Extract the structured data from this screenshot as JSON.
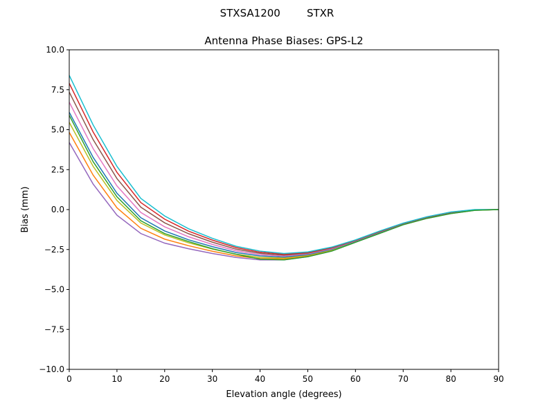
{
  "chart_data": {
    "type": "line",
    "suptitle": "STXSA1200        STXR",
    "title": "Antenna Phase Biases: GPS-L2",
    "xlabel": "Elevation angle (degrees)",
    "ylabel": "Bias (mm)",
    "x": [
      0,
      5,
      10,
      15,
      20,
      25,
      30,
      35,
      40,
      45,
      50,
      55,
      60,
      65,
      70,
      75,
      80,
      85,
      90
    ],
    "xlim": [
      0,
      90
    ],
    "xticks": [
      0,
      10,
      20,
      30,
      40,
      50,
      60,
      70,
      80,
      90
    ],
    "ylim": [
      -10,
      10
    ],
    "yticks": [
      {
        "value": -10,
        "label": "−10.0"
      },
      {
        "value": -7.5,
        "label": "−7.5"
      },
      {
        "value": -5,
        "label": "−5.0"
      },
      {
        "value": -2.5,
        "label": "−2.5"
      },
      {
        "value": 0,
        "label": "0.0"
      },
      2.5,
      {
        "value": 5,
        "label": "5.0"
      },
      7.5,
      {
        "value": 10,
        "label": "10.0"
      }
    ],
    "series": [
      {
        "color": "#9467bd",
        "values": [
          4.2,
          1.6,
          -0.35,
          -1.5,
          -2.1,
          -2.45,
          -2.75,
          -3.0,
          -3.15,
          -3.15,
          -2.95,
          -2.6,
          -2.05,
          -1.5,
          -0.95,
          -0.55,
          -0.25,
          -0.05,
          0
        ]
      },
      {
        "color": "#ff7f0e",
        "values": [
          4.83,
          2.16,
          0.11,
          -1.17,
          -1.85,
          -2.26,
          -2.61,
          -2.9,
          -3.07,
          -3.09,
          -2.91,
          -2.56,
          -2.03,
          -1.48,
          -0.94,
          -0.54,
          -0.24,
          -0.04,
          0
        ]
      },
      {
        "color": "#bcbd22",
        "values": [
          5.46,
          2.71,
          0.57,
          -0.84,
          -1.59,
          -2.08,
          -2.47,
          -2.79,
          -2.99,
          -3.03,
          -2.86,
          -2.53,
          -2.01,
          -1.46,
          -0.92,
          -0.52,
          -0.22,
          -0.04,
          0
        ]
      },
      {
        "color": "#1f77b4",
        "values": [
          6.09,
          3.27,
          1.02,
          -0.51,
          -1.34,
          -1.89,
          -2.32,
          -2.69,
          -2.9,
          -2.97,
          -2.82,
          -2.49,
          -1.98,
          -1.43,
          -0.91,
          -0.51,
          -0.21,
          -0.03,
          0
        ]
      },
      {
        "color": "#e377c2",
        "values": [
          6.72,
          3.82,
          1.48,
          -0.18,
          -1.08,
          -1.7,
          -2.18,
          -2.58,
          -2.82,
          -2.91,
          -2.77,
          -2.45,
          -1.96,
          -1.41,
          -0.89,
          -0.49,
          -0.19,
          -0.02,
          0
        ]
      },
      {
        "color": "#8c564b",
        "values": [
          7.35,
          4.38,
          1.94,
          0.15,
          -0.83,
          -1.51,
          -2.04,
          -2.48,
          -2.74,
          -2.85,
          -2.73,
          -2.41,
          -1.94,
          -1.39,
          -0.88,
          -0.48,
          -0.18,
          -0.01,
          0
        ]
      },
      {
        "color": "#d62728",
        "values": [
          7.9,
          4.86,
          2.33,
          0.44,
          -0.6,
          -1.35,
          -1.91,
          -2.38,
          -2.67,
          -2.8,
          -2.69,
          -2.38,
          -1.92,
          -1.37,
          -0.86,
          -0.46,
          -0.16,
          -0.01,
          0
        ]
      },
      {
        "color": "#17becf",
        "values": [
          8.4,
          5.3,
          2.7,
          0.7,
          -0.4,
          -1.2,
          -1.8,
          -2.3,
          -2.6,
          -2.75,
          -2.65,
          -2.35,
          -1.9,
          -1.35,
          -0.85,
          -0.45,
          -0.15,
          0,
          0
        ]
      },
      {
        "color": "#2ca02c",
        "values": [
          5.9,
          3.0,
          0.8,
          -0.7,
          -1.5,
          -2.0,
          -2.45,
          -2.8,
          -3.1,
          -3.15,
          -2.95,
          -2.6,
          -2.05,
          -1.5,
          -0.95,
          -0.55,
          -0.25,
          -0.05,
          0
        ]
      }
    ]
  }
}
